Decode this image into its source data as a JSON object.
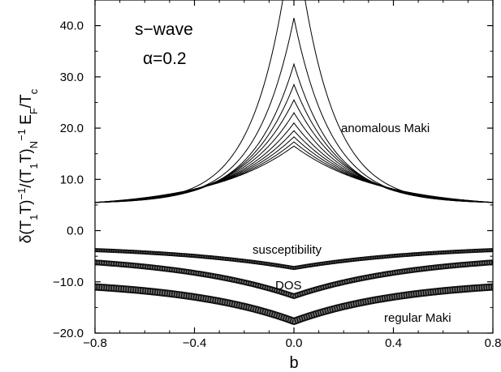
{
  "chart_data": {
    "type": "line",
    "title": "",
    "xlabel": "b",
    "ylabel": {
      "p1": "δ(T",
      "s1": "1",
      "p2": "T)",
      "sup1": "−1",
      "p3": "/(T",
      "s2": "1",
      "p4": "T)",
      "sub_N": "N",
      "sup2": "−1",
      "p5": " E",
      "sub_F": "F",
      "p6": "/T",
      "sub_c": "c"
    },
    "xlim": [
      -0.8,
      0.8
    ],
    "ylim": [
      -20,
      45
    ],
    "xticks": [
      -0.8,
      -0.4,
      0.0,
      0.4,
      0.8
    ],
    "xtick_labels": [
      "−0.8",
      "−0.4",
      "0.0",
      "0.4",
      "0.8"
    ],
    "yticks": [
      -20,
      -10,
      0,
      10,
      20,
      30,
      40
    ],
    "ytick_labels": [
      "−20.0",
      "−10.0",
      "0.0",
      "10.0",
      "20.0",
      "30.0",
      "40.0"
    ],
    "grid": false,
    "annotations": {
      "model": "s−wave",
      "alpha": "α=0.2",
      "anomalous": "anomalous Maki",
      "susceptibility": "susceptibility",
      "dos": "DOS",
      "regular": "regular Maki"
    },
    "series_anomalous_maki": {
      "edge_value": 5.5,
      "peak_values": [
        16.5,
        17.3,
        18.3,
        19.5,
        21.0,
        23.0,
        25.5,
        28.5,
        32.5,
        41.5,
        60.0
      ]
    },
    "series_susceptibility": {
      "edge_value": -3.8,
      "center_value": -7.3
    },
    "series_dos": {
      "edge_value": -6.2,
      "center_value": -12.8
    },
    "series_regular_maki": {
      "edge_value": -11.0,
      "center_value": -17.7
    }
  }
}
